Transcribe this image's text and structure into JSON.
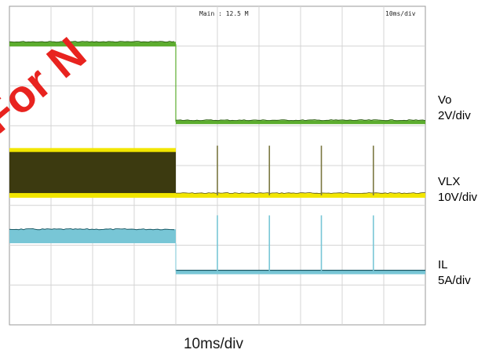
{
  "scope": {
    "header_center": "Main : 12.5 M",
    "header_right": "10ms/div"
  },
  "chart_data": {
    "type": "line",
    "title": "",
    "xlabel": "10ms/div",
    "x_divisions": 10,
    "y_divisions": 8,
    "x_unit": "ms",
    "x_range": [
      0,
      100
    ],
    "event_time_ms": 40,
    "spike_times_ms": [
      50,
      62.5,
      75,
      87.5
    ],
    "grid": true,
    "series": [
      {
        "name": "Vo",
        "scale": "2V/div",
        "color": "#5cad2e",
        "before_level_div": 0.95,
        "after_level_div": 2.9,
        "segments": [
          {
            "x": [
              0,
              40
            ],
            "y_div": 0.95
          },
          {
            "x": [
              40,
              100
            ],
            "y_div": 2.9
          }
        ]
      },
      {
        "name": "VLX",
        "scale": "10V/div",
        "color": "#f2e600",
        "switching_color": "#3c3a10",
        "before": {
          "low_div": 4.75,
          "high_div": 3.6
        },
        "after_level_div": 4.75,
        "spikes_high_div": 3.5
      },
      {
        "name": "IL",
        "scale": "5A/div",
        "color": "#78c6d6",
        "line_color": "#1c5a66",
        "before": {
          "low_div": 5.95,
          "high_div": 5.6
        },
        "after_level_div": 6.65,
        "spikes_high_div": 5.25
      }
    ]
  },
  "labels": {
    "vo_name": "Vo",
    "vo_scale": "2V/div",
    "vlx_name": "VLX",
    "vlx_scale": "10V/div",
    "il_name": "IL",
    "il_scale": "5A/div",
    "time_scale": "10ms/div"
  },
  "watermark": {
    "text": "y For N",
    "color": "#e8231f"
  }
}
